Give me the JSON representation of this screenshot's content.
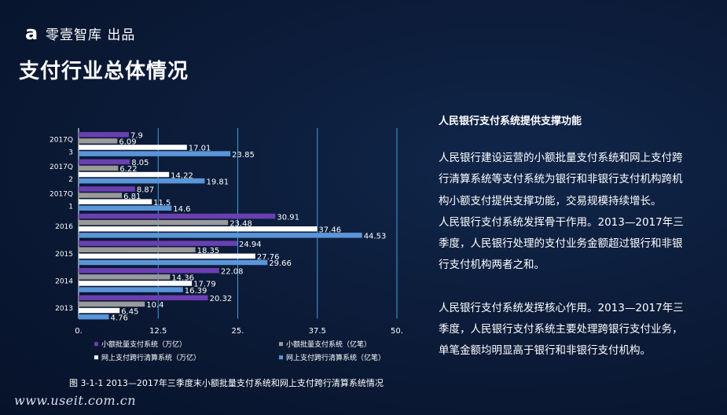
{
  "brand": {
    "logo": "a",
    "name": "零壹智库 出品"
  },
  "page_title": "支付行业总体情况",
  "caption": "图 3-1-1  2013—2017年三季度末小额批量支付系统和网上支付跨行清算系统情况",
  "watermark": "www.useit.com.cn",
  "panel": {
    "title": "人民银行支付系统提供支撑功能",
    "p1": "人民银行建设运营的小额批量支付系统和网上支付跨行清算系统等支付系统为银行和非银行支付机构跨机构小额支付提供支撑功能，交易规模持续增长。",
    "p2": "人民银行支付系统发挥骨干作用。2013—2017年三季度，人民银行处理的支付业务金额超过银行和非银行支付机构两者之和。",
    "p3": "人民银行支付系统发挥核心作用。2013—2017年三季度，人民银行支付系统主要处理跨银行支付业务，单笔金额均明显高于银行和非银行支付机构。"
  },
  "chart_data": {
    "type": "bar",
    "orientation": "horizontal",
    "categories": [
      [
        "2017Q",
        "3"
      ],
      [
        "2017Q",
        "2"
      ],
      [
        "2017Q",
        "1"
      ],
      [
        "2016"
      ],
      [
        "2015"
      ],
      [
        "2014"
      ],
      [
        "2013"
      ]
    ],
    "xlim": [
      0,
      50
    ],
    "xticks": [
      "0.",
      "12.5",
      "25.",
      "37.5",
      "50."
    ],
    "grid": true,
    "legend_position": "bottom",
    "series": [
      {
        "name": "小额批量支付系统（万亿）",
        "color": "#6a3fb0",
        "values": [
          7.9,
          8.05,
          8.87,
          30.91,
          24.94,
          22.08,
          20.32
        ]
      },
      {
        "name": "小额批量支付系统（亿笔）",
        "color": "#9a9a9a",
        "values": [
          6.09,
          6.22,
          6.81,
          23.48,
          18.35,
          14.36,
          10.4
        ]
      },
      {
        "name": "网上支付跨行清算系统（万亿）",
        "color": "#ffffff",
        "values": [
          17.01,
          14.22,
          11.5,
          37.46,
          27.76,
          17.79,
          6.45
        ]
      },
      {
        "name": "网上支付跨行清算系统（亿笔）",
        "color": "#5a95d8",
        "values": [
          23.85,
          19.81,
          14.6,
          44.53,
          29.66,
          16.39,
          4.76
        ]
      }
    ],
    "labels": [
      [
        "7.9",
        "6.09",
        "17.01",
        "23.85"
      ],
      [
        "8.05",
        "6.22",
        "14.22",
        "19.81"
      ],
      [
        "8.87",
        "6.81",
        "11.5",
        "14.6"
      ],
      [
        "30.91",
        "23.48",
        "37.46",
        "44.53"
      ],
      [
        "24.94",
        "18.35",
        "27.76",
        "29.66"
      ],
      [
        "22.08",
        "14.36",
        "17.79",
        "16.39"
      ],
      [
        "20.32",
        "10.4",
        "6.45",
        "4.76"
      ]
    ]
  }
}
